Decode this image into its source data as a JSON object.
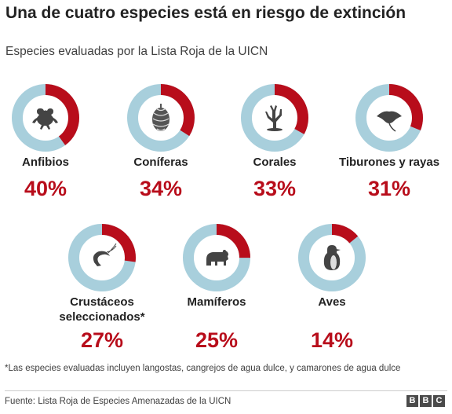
{
  "header": {
    "title": "Una de cuatro especies está en riesgo de extinción",
    "subtitle": "Especies evaluadas por la Lista Roja de la UICN"
  },
  "chart_data": [
    {
      "type": "pie",
      "label": "Anfibios",
      "value": 40,
      "value_label": "40%",
      "icon": "frog-icon"
    },
    {
      "type": "pie",
      "label": "Coníferas",
      "value": 34,
      "value_label": "34%",
      "icon": "pinecone-icon"
    },
    {
      "type": "pie",
      "label": "Corales",
      "value": 33,
      "value_label": "33%",
      "icon": "coral-icon"
    },
    {
      "type": "pie",
      "label": "Tiburones y rayas",
      "value": 31,
      "value_label": "31%",
      "icon": "ray-icon"
    },
    {
      "type": "pie",
      "label": "Crustáceos seleccionados*",
      "value": 27,
      "value_label": "27%",
      "icon": "shrimp-icon"
    },
    {
      "type": "pie",
      "label": "Mamíferos",
      "value": 25,
      "value_label": "25%",
      "icon": "bear-icon"
    },
    {
      "type": "pie",
      "label": "Aves",
      "value": 14,
      "value_label": "14%",
      "icon": "penguin-icon"
    }
  ],
  "colors": {
    "at_risk": "#b80d1b",
    "rest": "#a8cfdc"
  },
  "footnote": "*Las especies evaluadas incluyen langostas, cangrejos de agua dulce, y camarones de agua dulce",
  "source": "Fuente: Lista Roja de Especies Amenazadas de la UICN",
  "logo": [
    "B",
    "B",
    "C"
  ]
}
